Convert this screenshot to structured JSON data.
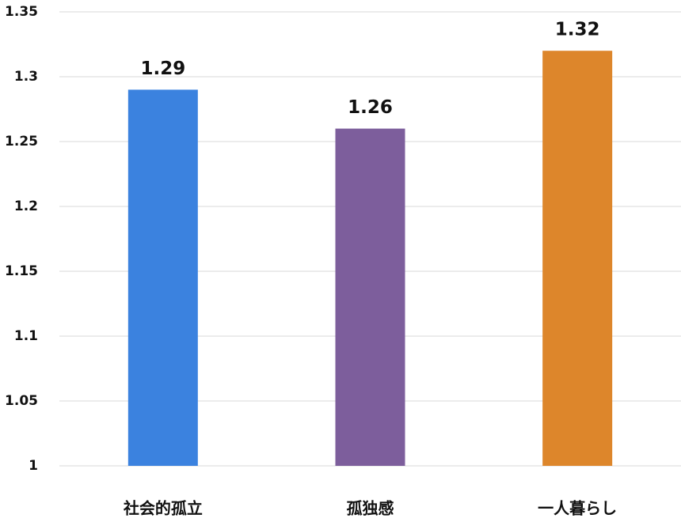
{
  "chart_data": {
    "type": "bar",
    "categories": [
      "社会的孤立",
      "孤独感",
      "一人暮らし"
    ],
    "values": [
      1.29,
      1.26,
      1.32
    ],
    "colors": [
      "#3b82df",
      "#7d5e9c",
      "#dd862b"
    ],
    "ylim": [
      1,
      1.35
    ],
    "yticks": [
      1,
      1.05,
      1.1,
      1.15,
      1.2,
      1.25,
      1.3,
      1.35
    ],
    "grid": true
  }
}
